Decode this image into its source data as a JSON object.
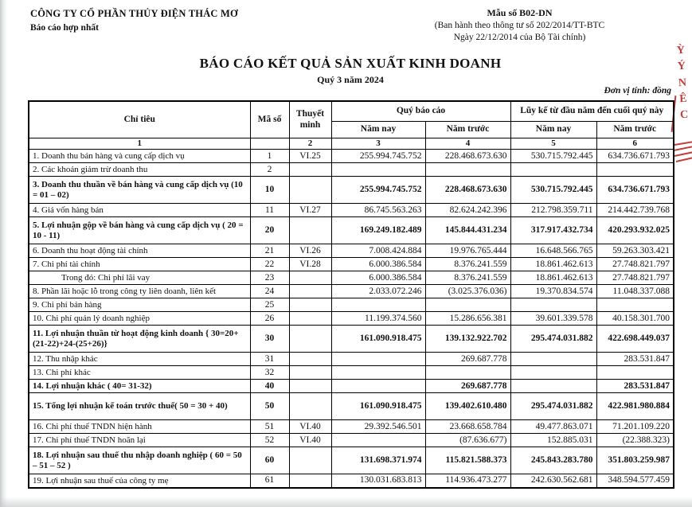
{
  "header": {
    "company": "CÔNG TY CỔ PHẦN THỦY ĐIỆN THÁC MƠ",
    "scope": "Báo cáo hợp nhất",
    "form_no": "Mẫu số B02-DN",
    "form_issue_line1": "(Ban hành theo thông tư số 202/2014/TT-BTC",
    "form_issue_line2": "Ngày 22/12/2014 của Bộ Tài chính)",
    "title": "BÁO CÁO KẾT QUẢ SẢN XUẤT KINH DOANH",
    "period": "Quý 3 năm 2024",
    "unit_note": "Đơn vị tính: đồng"
  },
  "stamp": {
    "color": "#c43d3d",
    "chars": [
      "Ỳ",
      "Ý",
      "N",
      "Ê",
      "C"
    ]
  },
  "table": {
    "headers": {
      "criteria": "Chỉ tiêu",
      "code": "Mã số",
      "note": "Thuyết minh",
      "quarter_group": "Quý báo cáo",
      "ytd_group": "Lũy kế từ đầu năm đến cuối quý này",
      "year_now": "Năm nay",
      "year_prev": "Năm trước",
      "col_nums": [
        "1",
        "",
        "2",
        "3",
        "4",
        "5",
        "6"
      ]
    },
    "rows": [
      {
        "label": "1. Doanh thu bán hàng và cung cấp dịch vụ",
        "code": "1",
        "note": "VI.25",
        "values": [
          "255.994.745.752",
          "228.468.673.630",
          "530.715.792.445",
          "634.736.671.793"
        ],
        "bold": false,
        "indent": false,
        "lines": 1
      },
      {
        "label": "2. Các khoản giảm trừ doanh thu",
        "code": "2",
        "note": "",
        "values": [
          "",
          "",
          "",
          ""
        ],
        "bold": false,
        "indent": false,
        "lines": 1
      },
      {
        "label": "3. Doanh thu thuần về bán hàng và cung cấp dịch vụ (10 = 01 – 02)",
        "code": "10",
        "note": "",
        "values": [
          "255.994.745.752",
          "228.468.673.630",
          "530.715.792.445",
          "634.736.671.793"
        ],
        "bold": true,
        "indent": false,
        "lines": 2
      },
      {
        "label": "4. Giá vốn hàng bán",
        "code": "11",
        "note": "VI.27",
        "values": [
          "86.745.563.263",
          "82.624.242.396",
          "212.798.359.711",
          "214.442.739.768"
        ],
        "bold": false,
        "indent": false,
        "lines": 1
      },
      {
        "label": "5. Lợi nhuận gộp về bán hàng và cung cấp dịch vụ ( 20 = 10 - 11)",
        "code": "20",
        "note": "",
        "values": [
          "169.249.182.489",
          "145.844.431.234",
          "317.917.432.734",
          "420.293.932.025"
        ],
        "bold": true,
        "indent": false,
        "lines": 2
      },
      {
        "label": "6. Doanh thu hoạt động tài chính",
        "code": "21",
        "note": "VI.26",
        "values": [
          "7.008.424.884",
          "19.976.765.444",
          "16.648.566.765",
          "59.263.303.421"
        ],
        "bold": false,
        "indent": false,
        "lines": 1
      },
      {
        "label": "7. Chi phí tài chính",
        "code": "22",
        "note": "VI.28",
        "values": [
          "6.000.386.584",
          "8.376.241.559",
          "18.861.462.613",
          "27.748.821.797"
        ],
        "bold": false,
        "indent": false,
        "lines": 1
      },
      {
        "label": "Trong đó: Chi phí lãi vay",
        "code": "23",
        "note": "",
        "values": [
          "6.000.386.584",
          "8.376.241.559",
          "18.861.462.613",
          "27.748.821.797"
        ],
        "bold": false,
        "indent": true,
        "lines": 1
      },
      {
        "label": "8. Phần lãi hoặc lỗ trong công ty liên doanh, liên kết",
        "code": "24",
        "note": "",
        "values": [
          "2.033.072.246",
          "(3.025.376.036)",
          "19.370.834.574",
          "11.048.337.088"
        ],
        "bold": false,
        "indent": false,
        "lines": 1
      },
      {
        "label": "9. Chi phí bán hàng",
        "code": "25",
        "note": "",
        "values": [
          "",
          "",
          "",
          ""
        ],
        "bold": false,
        "indent": false,
        "lines": 1
      },
      {
        "label": "10. Chi phí quản lý doanh nghiệp",
        "code": "26",
        "note": "",
        "values": [
          "11.199.374.560",
          "15.286.656.381",
          "39.601.339.578",
          "40.158.301.700"
        ],
        "bold": false,
        "indent": false,
        "lines": 1
      },
      {
        "label": "11. Lợi nhuận thuần từ hoạt động kinh doanh { 30=20+ (21-22)+24-(25+26)}",
        "code": "30",
        "note": "",
        "values": [
          "161.090.918.475",
          "139.132.922.702",
          "295.474.031.882",
          "422.698.449.037"
        ],
        "bold": true,
        "indent": false,
        "lines": 2
      },
      {
        "label": "12. Thu nhập khác",
        "code": "31",
        "note": "",
        "values": [
          "",
          "269.687.778",
          "",
          "283.531.847"
        ],
        "bold": false,
        "indent": false,
        "lines": 1
      },
      {
        "label": "13. Chi phí khác",
        "code": "32",
        "note": "",
        "values": [
          "",
          "",
          "",
          ""
        ],
        "bold": false,
        "indent": false,
        "lines": 1
      },
      {
        "label": "14. Lợi nhuận khác ( 40= 31-32)",
        "code": "40",
        "note": "",
        "values": [
          "",
          "269.687.778",
          "",
          "283.531.847"
        ],
        "bold": true,
        "indent": false,
        "lines": 1
      },
      {
        "label": "15. Tổng lợi nhuận kế toán trước thuế( 50 = 30 + 40)",
        "code": "50",
        "note": "",
        "values": [
          "161.090.918.475",
          "139.402.610.480",
          "295.474.031.882",
          "422.981.980.884"
        ],
        "bold": true,
        "indent": false,
        "lines": 2
      },
      {
        "label": "16. Chi phí thuế TNDN hiện hành",
        "code": "51",
        "note": "VI.40",
        "values": [
          "29.392.546.501",
          "23.668.658.784",
          "49.477.863.071",
          "71.201.109.220"
        ],
        "bold": false,
        "indent": false,
        "lines": 1
      },
      {
        "label": "17. Chi phí thuế TNDN hoãn lại",
        "code": "52",
        "note": "VI.40",
        "values": [
          "",
          "(87.636.677)",
          "152.885.031",
          "(22.388.323)"
        ],
        "bold": false,
        "indent": false,
        "lines": 1
      },
      {
        "label": "18. Lợi nhuận sau thuế thu nhập doanh nghiệp ( 60 = 50 – 51 – 52 )",
        "code": "60",
        "note": "",
        "values": [
          "131.698.371.974",
          "115.821.588.373",
          "245.843.283.780",
          "351.803.259.987"
        ],
        "bold": true,
        "indent": false,
        "lines": 2
      },
      {
        "label": "19. Lợi nhuận sau thuế của công ty mẹ",
        "code": "61",
        "note": "",
        "values": [
          "130.031.683.813",
          "114.936.473.277",
          "242.630.562.681",
          "348.594.577.459"
        ],
        "bold": false,
        "indent": false,
        "lines": 1
      }
    ]
  }
}
